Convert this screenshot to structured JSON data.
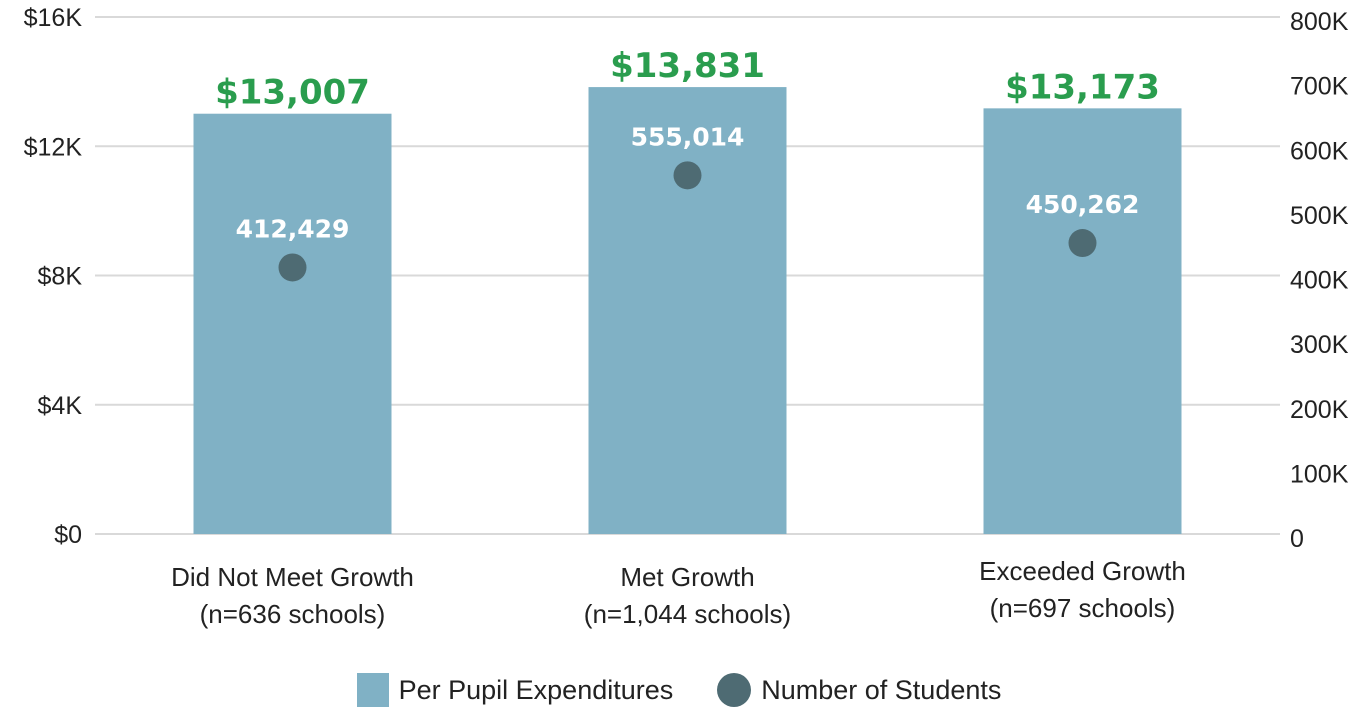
{
  "chart_data": {
    "type": "bar",
    "categories": [
      {
        "line1": "Did Not Meet Growth",
        "line2": "(n=636 schools)"
      },
      {
        "line1": "Met Growth",
        "line2": "(n=1,044 schools)"
      },
      {
        "line1": "Exceeded Growth",
        "line2": "(n=697 schools)"
      }
    ],
    "series": [
      {
        "name": "Per Pupil Expenditures",
        "kind": "bar",
        "axis": "left",
        "values": [
          13007,
          13831,
          13173
        ],
        "labels": [
          "$13,007",
          "$13,831",
          "$13,173"
        ]
      },
      {
        "name": "Number of Students",
        "kind": "point",
        "axis": "right",
        "values": [
          412429,
          555014,
          450262
        ],
        "labels": [
          "412,429",
          "555,014",
          "450,262"
        ]
      }
    ],
    "y_left": {
      "range": [
        0,
        16000
      ],
      "ticks": [
        0,
        4000,
        8000,
        12000,
        16000
      ],
      "tick_labels": [
        "$0",
        "$4K",
        "$8K",
        "$12K",
        "$16K"
      ]
    },
    "y_right": {
      "range": [
        0,
        800000
      ],
      "ticks": [
        0,
        100000,
        200000,
        300000,
        400000,
        500000,
        600000,
        700000,
        800000
      ],
      "tick_labels": [
        "0",
        "100K",
        "200K",
        "300K",
        "400K",
        "500K",
        "600K",
        "700K",
        "800K"
      ]
    },
    "grid": true,
    "legend_position": "bottom",
    "colors": {
      "bar": "#80b1c5",
      "point": "#4e6b73",
      "bar_label": "#2a9d4e",
      "grid": "#d9d9d9",
      "point_label": "#ffffff"
    }
  },
  "legend": {
    "bar_label": "Per Pupil Expenditures",
    "point_label": "Number of Students"
  }
}
